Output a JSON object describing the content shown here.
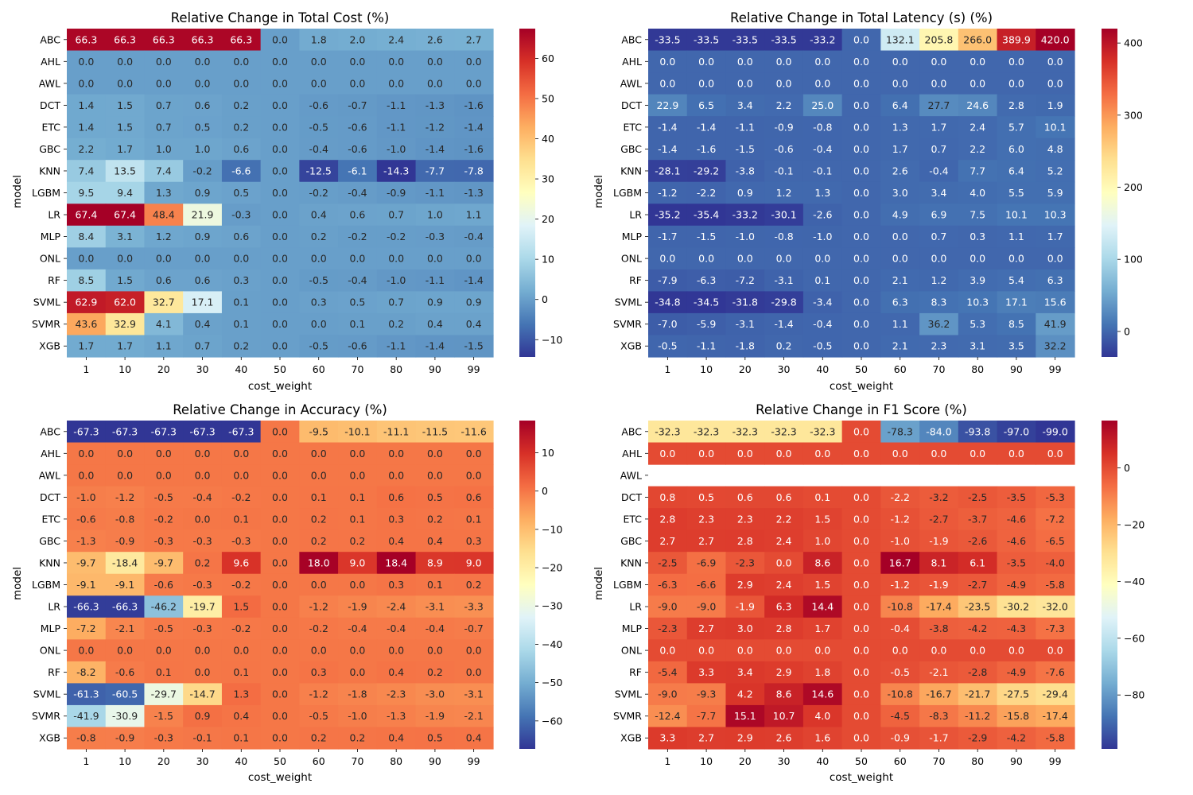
{
  "chart_data": [
    {
      "type": "heatmap",
      "title": "Relative Change in Total Cost (%)",
      "xlabel": "cost_weight",
      "ylabel": "model",
      "x": [
        "1",
        "10",
        "20",
        "30",
        "40",
        "50",
        "60",
        "70",
        "80",
        "90",
        "99"
      ],
      "y": [
        "ABC",
        "AHL",
        "AWL",
        "DCT",
        "ETC",
        "GBC",
        "KNN",
        "LGBM",
        "LR",
        "MLP",
        "ONL",
        "RF",
        "SVML",
        "SVMR",
        "XGB"
      ],
      "values": [
        [
          66.3,
          66.3,
          66.3,
          66.3,
          66.3,
          0.0,
          1.8,
          2.0,
          2.4,
          2.6,
          2.7
        ],
        [
          0.0,
          0.0,
          0.0,
          0.0,
          0.0,
          0.0,
          0.0,
          0.0,
          0.0,
          0.0,
          0.0
        ],
        [
          0.0,
          0.0,
          0.0,
          0.0,
          0.0,
          0.0,
          0.0,
          0.0,
          0.0,
          0.0,
          0.0
        ],
        [
          1.4,
          1.5,
          0.7,
          0.6,
          0.2,
          0.0,
          -0.6,
          -0.7,
          -1.1,
          -1.3,
          -1.6
        ],
        [
          1.4,
          1.5,
          0.7,
          0.5,
          0.2,
          0.0,
          -0.5,
          -0.6,
          -1.1,
          -1.2,
          -1.4
        ],
        [
          2.2,
          1.7,
          1.0,
          1.0,
          0.6,
          0.0,
          -0.4,
          -0.6,
          -1.0,
          -1.4,
          -1.6
        ],
        [
          7.4,
          13.5,
          7.4,
          -0.2,
          -6.6,
          0.0,
          -12.5,
          -6.1,
          -14.3,
          -7.7,
          -7.8
        ],
        [
          9.5,
          9.4,
          1.3,
          0.9,
          0.5,
          0.0,
          -0.2,
          -0.4,
          -0.9,
          -1.1,
          -1.3
        ],
        [
          67.4,
          67.4,
          48.4,
          21.9,
          -0.3,
          0.0,
          0.4,
          0.6,
          0.7,
          1.0,
          1.1
        ],
        [
          8.4,
          3.1,
          1.2,
          0.9,
          0.6,
          0.0,
          0.2,
          -0.2,
          -0.2,
          -0.3,
          -0.4
        ],
        [
          0.0,
          0.0,
          0.0,
          0.0,
          0.0,
          0.0,
          0.0,
          0.0,
          0.0,
          0.0,
          0.0
        ],
        [
          8.5,
          1.5,
          0.6,
          0.6,
          0.3,
          0.0,
          -0.5,
          -0.4,
          -1.0,
          -1.1,
          -1.4
        ],
        [
          62.9,
          62.0,
          32.7,
          17.1,
          0.1,
          0.0,
          0.3,
          0.5,
          0.7,
          0.9,
          0.9
        ],
        [
          43.6,
          32.9,
          4.1,
          0.4,
          0.1,
          0.0,
          0.0,
          0.1,
          0.2,
          0.4,
          0.4
        ],
        [
          1.7,
          1.7,
          1.1,
          0.7,
          0.2,
          0.0,
          -0.5,
          -0.6,
          -1.1,
          -1.4,
          -1.5
        ]
      ],
      "colormap": "RdYlBu_r",
      "vmin": -14.3,
      "vmax": 67.4,
      "colorbar_ticks": [
        -10,
        0,
        10,
        20,
        30,
        40,
        50,
        60
      ]
    },
    {
      "type": "heatmap",
      "title": "Relative Change in Total Latency (s) (%)",
      "xlabel": "cost_weight",
      "ylabel": "model",
      "x": [
        "1",
        "10",
        "20",
        "30",
        "40",
        "50",
        "60",
        "70",
        "80",
        "90",
        "99"
      ],
      "y": [
        "ABC",
        "AHL",
        "AWL",
        "DCT",
        "ETC",
        "GBC",
        "KNN",
        "LGBM",
        "LR",
        "MLP",
        "ONL",
        "RF",
        "SVML",
        "SVMR",
        "XGB"
      ],
      "values": [
        [
          -33.5,
          -33.5,
          -33.5,
          -33.5,
          -33.2,
          0.0,
          132.1,
          205.8,
          266.0,
          389.9,
          420.0
        ],
        [
          0.0,
          0.0,
          0.0,
          0.0,
          0.0,
          0.0,
          0.0,
          0.0,
          0.0,
          0.0,
          0.0
        ],
        [
          0.0,
          0.0,
          0.0,
          0.0,
          0.0,
          0.0,
          0.0,
          0.0,
          0.0,
          0.0,
          0.0
        ],
        [
          22.9,
          6.5,
          3.4,
          2.2,
          25.0,
          0.0,
          6.4,
          27.7,
          24.6,
          2.8,
          1.9
        ],
        [
          -1.4,
          -1.4,
          -1.1,
          -0.9,
          -0.8,
          0.0,
          1.3,
          1.7,
          2.4,
          5.7,
          10.1
        ],
        [
          -1.4,
          -1.6,
          -1.5,
          -0.6,
          -0.4,
          0.0,
          1.7,
          0.7,
          2.2,
          6.0,
          4.8
        ],
        [
          -28.1,
          -29.2,
          -3.8,
          -0.1,
          -0.1,
          0.0,
          2.6,
          -0.4,
          7.7,
          6.4,
          5.2
        ],
        [
          -1.2,
          -2.2,
          0.9,
          1.2,
          1.3,
          0.0,
          3.0,
          3.4,
          4.0,
          5.5,
          5.9
        ],
        [
          -35.2,
          -35.4,
          -33.2,
          -30.1,
          -2.6,
          0.0,
          4.9,
          6.9,
          7.5,
          10.1,
          10.3
        ],
        [
          -1.7,
          -1.5,
          -1.0,
          -0.8,
          -1.0,
          0.0,
          -0.0,
          0.7,
          0.3,
          1.1,
          1.7
        ],
        [
          0.0,
          0.0,
          0.0,
          0.0,
          0.0,
          0.0,
          0.0,
          0.0,
          0.0,
          0.0,
          0.0
        ],
        [
          -7.9,
          -6.3,
          -7.2,
          -3.1,
          0.1,
          0.0,
          2.1,
          1.2,
          3.9,
          5.4,
          6.3
        ],
        [
          -34.8,
          -34.5,
          -31.8,
          -29.8,
          -3.4,
          0.0,
          6.3,
          8.3,
          10.3,
          17.1,
          15.6
        ],
        [
          -7.0,
          -5.9,
          -3.1,
          -1.4,
          -0.4,
          0.0,
          1.1,
          36.2,
          5.3,
          8.5,
          41.9
        ],
        [
          -0.5,
          -1.1,
          -1.8,
          0.2,
          -0.5,
          0.0,
          2.1,
          2.3,
          3.1,
          3.5,
          32.2
        ]
      ],
      "colormap": "RdYlBu_r",
      "vmin": -35.4,
      "vmax": 420.0,
      "colorbar_ticks": [
        0,
        100,
        200,
        300,
        400
      ]
    },
    {
      "type": "heatmap",
      "title": "Relative Change in Accuracy (%)",
      "xlabel": "cost_weight",
      "ylabel": "model",
      "x": [
        "1",
        "10",
        "20",
        "30",
        "40",
        "50",
        "60",
        "70",
        "80",
        "90",
        "99"
      ],
      "y": [
        "ABC",
        "AHL",
        "AWL",
        "DCT",
        "ETC",
        "GBC",
        "KNN",
        "LGBM",
        "LR",
        "MLP",
        "ONL",
        "RF",
        "SVML",
        "SVMR",
        "XGB"
      ],
      "values": [
        [
          -67.3,
          -67.3,
          -67.3,
          -67.3,
          -67.3,
          0.0,
          -9.5,
          -10.1,
          -11.1,
          -11.5,
          -11.6
        ],
        [
          0.0,
          0.0,
          0.0,
          0.0,
          0.0,
          0.0,
          0.0,
          0.0,
          0.0,
          0.0,
          0.0
        ],
        [
          0.0,
          0.0,
          0.0,
          0.0,
          0.0,
          0.0,
          0.0,
          0.0,
          0.0,
          0.0,
          0.0
        ],
        [
          -1.0,
          -1.2,
          -0.5,
          -0.4,
          -0.2,
          0.0,
          0.1,
          0.1,
          0.6,
          0.5,
          0.6
        ],
        [
          -0.6,
          -0.8,
          -0.2,
          -0.0,
          0.1,
          0.0,
          0.2,
          0.1,
          0.3,
          0.2,
          0.1
        ],
        [
          -1.3,
          -0.9,
          -0.3,
          -0.3,
          -0.3,
          0.0,
          0.2,
          0.2,
          0.4,
          0.4,
          0.3
        ],
        [
          -9.7,
          -18.4,
          -9.7,
          0.2,
          9.6,
          0.0,
          18.0,
          9.0,
          18.4,
          8.9,
          9.0
        ],
        [
          -9.1,
          -9.1,
          -0.6,
          -0.3,
          -0.2,
          0.0,
          -0.0,
          0.0,
          0.3,
          0.1,
          0.2
        ],
        [
          -66.3,
          -66.3,
          -46.2,
          -19.7,
          1.5,
          0.0,
          -1.2,
          -1.9,
          -2.4,
          -3.1,
          -3.3
        ],
        [
          -7.2,
          -2.1,
          -0.5,
          -0.3,
          -0.2,
          0.0,
          -0.2,
          -0.4,
          -0.4,
          -0.4,
          -0.7
        ],
        [
          0.0,
          0.0,
          0.0,
          0.0,
          0.0,
          0.0,
          0.0,
          0.0,
          0.0,
          0.0,
          0.0
        ],
        [
          -8.2,
          -0.6,
          0.1,
          0.0,
          0.1,
          0.0,
          0.3,
          0.0,
          0.4,
          0.2,
          -0.0
        ],
        [
          -61.3,
          -60.5,
          -29.7,
          -14.7,
          1.3,
          0.0,
          -1.2,
          -1.8,
          -2.3,
          -3.0,
          -3.1
        ],
        [
          -41.9,
          -30.9,
          -1.5,
          0.9,
          0.4,
          0.0,
          -0.5,
          -1.0,
          -1.3,
          -1.9,
          -2.1
        ],
        [
          -0.8,
          -0.9,
          -0.3,
          -0.1,
          0.1,
          0.0,
          0.2,
          0.2,
          0.4,
          0.5,
          0.4
        ]
      ],
      "colormap": "RdYlBu_r",
      "vmin": -67.3,
      "vmax": 18.4,
      "colorbar_ticks": [
        -60,
        -50,
        -40,
        -30,
        -20,
        -10,
        0,
        10
      ]
    },
    {
      "type": "heatmap",
      "title": "Relative Change in F1 Score (%)",
      "xlabel": "cost_weight",
      "ylabel": "model",
      "x": [
        "1",
        "10",
        "20",
        "30",
        "40",
        "50",
        "60",
        "70",
        "80",
        "90",
        "99"
      ],
      "y": [
        "ABC",
        "AHL",
        "AWL",
        "DCT",
        "ETC",
        "GBC",
        "KNN",
        "LGBM",
        "LR",
        "MLP",
        "ONL",
        "RF",
        "SVML",
        "SVMR",
        "XGB"
      ],
      "values": [
        [
          -32.3,
          -32.3,
          -32.3,
          -32.3,
          -32.3,
          0.0,
          -78.3,
          -84.0,
          -93.8,
          -97.0,
          -99.0
        ],
        [
          0.0,
          0.0,
          0.0,
          0.0,
          0.0,
          0.0,
          0.0,
          0.0,
          0.0,
          0.0,
          0.0
        ],
        [
          null,
          null,
          null,
          null,
          null,
          null,
          null,
          null,
          null,
          null,
          null
        ],
        [
          0.8,
          0.5,
          0.6,
          0.6,
          0.1,
          0.0,
          -2.2,
          -3.2,
          -2.5,
          -3.5,
          -5.3
        ],
        [
          2.8,
          2.3,
          2.3,
          2.2,
          1.5,
          0.0,
          -1.2,
          -2.7,
          -3.7,
          -4.6,
          -7.2
        ],
        [
          2.7,
          2.7,
          2.8,
          2.4,
          1.0,
          0.0,
          -1.0,
          -1.9,
          -2.6,
          -4.6,
          -6.5
        ],
        [
          -2.5,
          -6.9,
          -2.3,
          -0.0,
          8.6,
          0.0,
          16.7,
          8.1,
          6.1,
          -3.5,
          -4.0
        ],
        [
          -6.3,
          -6.6,
          2.9,
          2.4,
          1.5,
          0.0,
          -1.2,
          -1.9,
          -2.7,
          -4.9,
          -5.8
        ],
        [
          -9.0,
          -9.0,
          -1.9,
          6.3,
          14.4,
          0.0,
          -10.8,
          -17.4,
          -23.5,
          -30.2,
          -32.0
        ],
        [
          -2.3,
          2.7,
          3.0,
          2.8,
          1.7,
          0.0,
          -0.4,
          -3.8,
          -4.2,
          -4.3,
          -7.3
        ],
        [
          0.0,
          0.0,
          0.0,
          0.0,
          0.0,
          0.0,
          0.0,
          0.0,
          0.0,
          0.0,
          0.0
        ],
        [
          -5.4,
          3.3,
          3.4,
          2.9,
          1.8,
          0.0,
          -0.5,
          -2.1,
          -2.8,
          -4.9,
          -7.6
        ],
        [
          -9.0,
          -9.3,
          4.2,
          8.6,
          14.6,
          0.0,
          -10.8,
          -16.7,
          -21.7,
          -27.5,
          -29.4
        ],
        [
          -12.4,
          -7.7,
          15.1,
          10.7,
          4.0,
          0.0,
          -4.5,
          -8.3,
          -11.2,
          -15.8,
          -17.4
        ],
        [
          3.3,
          2.7,
          2.9,
          2.6,
          1.6,
          0.0,
          -0.9,
          -1.7,
          -2.9,
          -4.2,
          -5.8
        ]
      ],
      "colormap": "RdYlBu_r",
      "vmin": -99.0,
      "vmax": 16.7,
      "colorbar_ticks": [
        -80,
        -60,
        -40,
        -20,
        0
      ]
    }
  ]
}
